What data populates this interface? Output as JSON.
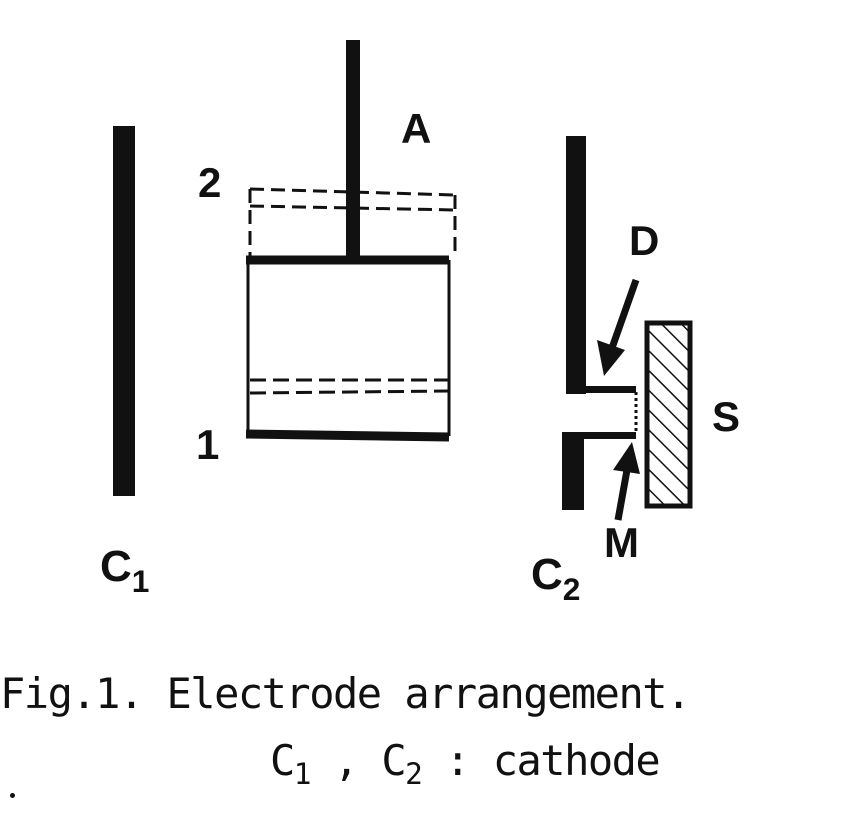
{
  "labels": {
    "A": "A",
    "two": "2",
    "one": "1",
    "D": "D",
    "S": "S",
    "M": "M",
    "c1_main": "C",
    "c1_sub": "1",
    "c2_main": "C",
    "c2_sub": "2"
  },
  "caption": {
    "line1": "Fig.1. Electrode arrangement.",
    "line2_c": "C",
    "line2_sub1": "1",
    "line2_mid": " , ",
    "line2_sub2": "2",
    "line2_tail": " : cathode"
  }
}
